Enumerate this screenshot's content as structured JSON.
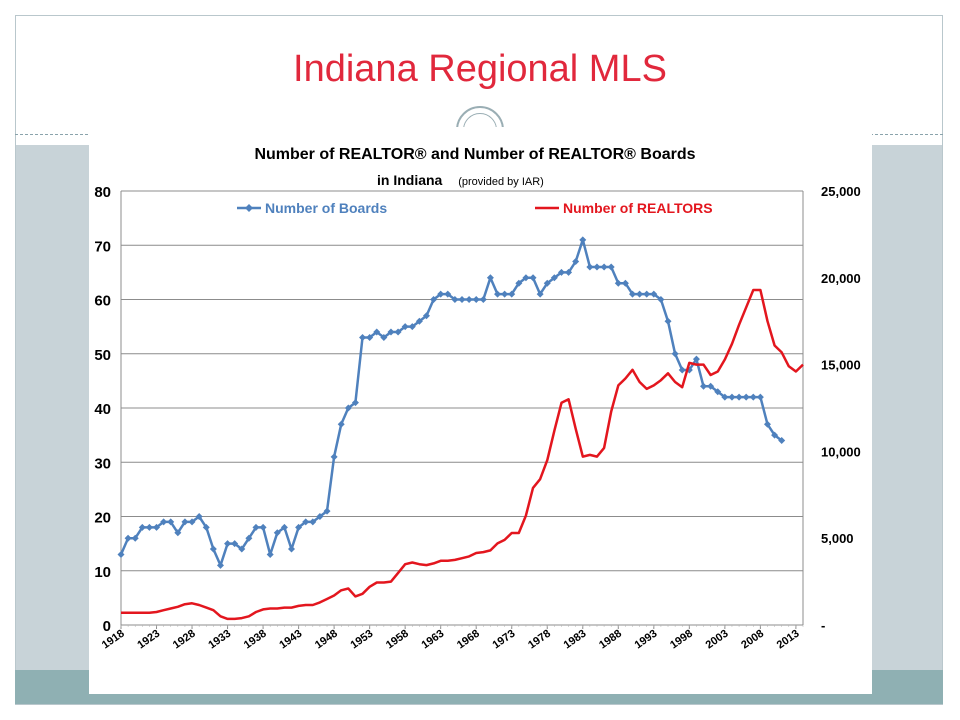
{
  "slide": {
    "title": "Indiana Regional MLS"
  },
  "chart_data": {
    "type": "line",
    "title": "Number of REALTOR® and Number of REALTOR® Boards",
    "subtitle": "in Indiana",
    "subtitle_note": "(provided by IAR)",
    "x_tick_labels": [
      "1918",
      "1923",
      "1928",
      "1933",
      "1938",
      "1943",
      "1948",
      "1953",
      "1958",
      "1963",
      "1968",
      "1973",
      "1978",
      "1983",
      "1988",
      "1993",
      "1998",
      "2003",
      "2008",
      "2013"
    ],
    "xlim": [
      1918,
      2014
    ],
    "y_left": {
      "lim": [
        0,
        80
      ],
      "ticks": [
        "0",
        "10",
        "20",
        "30",
        "40",
        "50",
        "60",
        "70",
        "80"
      ]
    },
    "y_right": {
      "lim": [
        0,
        25000
      ],
      "ticks": [
        "-",
        "5,000",
        "10,000",
        "15,000",
        "20,000",
        "25,000"
      ]
    },
    "grid": true,
    "legend_placement": "top",
    "series": [
      {
        "name": "Number of Boards",
        "axis": "left",
        "color": "#4f81bd",
        "marker": "diamond",
        "x": [
          1918,
          1919,
          1920,
          1921,
          1922,
          1923,
          1924,
          1925,
          1926,
          1927,
          1928,
          1929,
          1930,
          1931,
          1932,
          1933,
          1934,
          1935,
          1936,
          1937,
          1938,
          1939,
          1940,
          1941,
          1942,
          1943,
          1944,
          1945,
          1946,
          1947,
          1948,
          1949,
          1950,
          1951,
          1952,
          1953,
          1954,
          1955,
          1956,
          1957,
          1958,
          1959,
          1960,
          1961,
          1962,
          1963,
          1964,
          1965,
          1966,
          1967,
          1968,
          1969,
          1970,
          1971,
          1972,
          1973,
          1974,
          1975,
          1976,
          1977,
          1978,
          1979,
          1980,
          1981,
          1982,
          1983,
          1984,
          1985,
          1986,
          1987,
          1988,
          1989,
          1990,
          1991,
          1992,
          1993,
          1994,
          1995,
          1996,
          1997,
          1998,
          1999,
          2000,
          2001,
          2002,
          2003,
          2004,
          2005,
          2006,
          2007,
          2008,
          2009,
          2010,
          2011
        ],
        "values": [
          13,
          16,
          16,
          18,
          18,
          18,
          19,
          19,
          17,
          19,
          19,
          20,
          18,
          14,
          11,
          15,
          15,
          14,
          16,
          18,
          18,
          13,
          17,
          18,
          14,
          18,
          19,
          19,
          20,
          21,
          31,
          37,
          40,
          41,
          53,
          53,
          54,
          53,
          54,
          54,
          55,
          55,
          56,
          57,
          60,
          61,
          61,
          60,
          60,
          60,
          60,
          60,
          64,
          61,
          61,
          61,
          63,
          64,
          64,
          61,
          63,
          64,
          65,
          65,
          67,
          71,
          66,
          66,
          66,
          66,
          63,
          63,
          61,
          61,
          61,
          61,
          60,
          56,
          50,
          47,
          47,
          49,
          44,
          44,
          43,
          42,
          42,
          42,
          42,
          42,
          42,
          37,
          35,
          34
        ]
      },
      {
        "name": "Number of REALTORS",
        "axis": "right",
        "color": "#e3161e",
        "x": [
          1918,
          1919,
          1920,
          1921,
          1922,
          1923,
          1924,
          1925,
          1926,
          1927,
          1928,
          1929,
          1930,
          1931,
          1932,
          1933,
          1934,
          1935,
          1936,
          1937,
          1938,
          1939,
          1940,
          1941,
          1942,
          1943,
          1944,
          1945,
          1946,
          1947,
          1948,
          1949,
          1950,
          1951,
          1952,
          1953,
          1954,
          1955,
          1956,
          1957,
          1958,
          1959,
          1960,
          1961,
          1962,
          1963,
          1964,
          1965,
          1966,
          1967,
          1968,
          1969,
          1970,
          1971,
          1972,
          1973,
          1974,
          1975,
          1976,
          1977,
          1978,
          1979,
          1980,
          1981,
          1982,
          1983,
          1984,
          1985,
          1986,
          1987,
          1988,
          1989,
          1990,
          1991,
          1992,
          1993,
          1994,
          1995,
          1996,
          1997,
          1998,
          1999,
          2000,
          2001,
          2002,
          2003,
          2004,
          2005,
          2006,
          2007,
          2008,
          2009,
          2010,
          2011,
          2012,
          2013,
          2014
        ],
        "values": [
          700,
          700,
          700,
          700,
          700,
          750,
          850,
          950,
          1050,
          1200,
          1250,
          1150,
          1000,
          850,
          500,
          350,
          350,
          400,
          500,
          750,
          900,
          950,
          950,
          1000,
          1000,
          1100,
          1150,
          1150,
          1300,
          1500,
          1700,
          2000,
          2100,
          1650,
          1800,
          2200,
          2450,
          2450,
          2500,
          3000,
          3500,
          3600,
          3500,
          3450,
          3550,
          3700,
          3700,
          3750,
          3850,
          3950,
          4150,
          4200,
          4300,
          4700,
          4900,
          5300,
          5300,
          6300,
          7900,
          8400,
          9500,
          11200,
          12800,
          13000,
          11300,
          9700,
          9800,
          9700,
          10200,
          12300,
          13800,
          14200,
          14700,
          14000,
          13600,
          13800,
          14100,
          14500,
          14000,
          13700,
          15100,
          15000,
          15000,
          14400,
          14600,
          15300,
          16200,
          17300,
          18300,
          19300,
          19300,
          17500,
          16100,
          15700,
          14900,
          14600,
          15000
        ]
      }
    ]
  }
}
